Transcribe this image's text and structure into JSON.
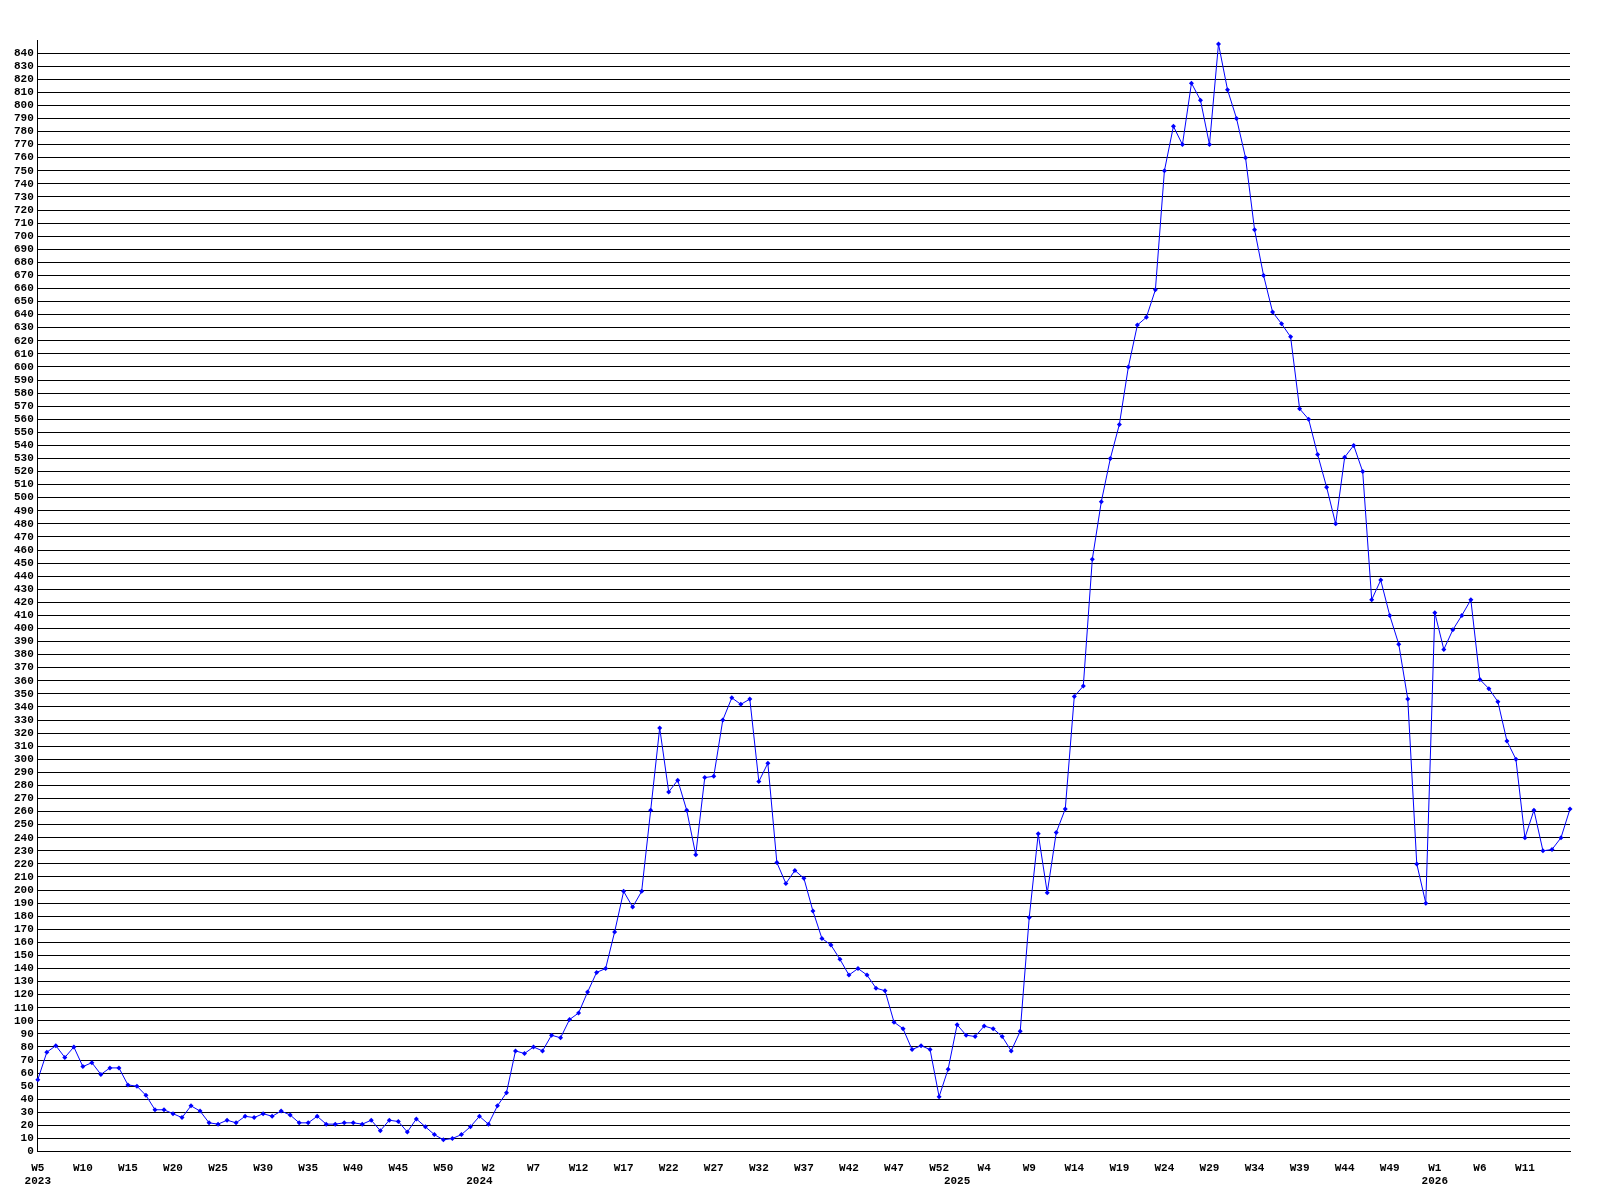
{
  "chart_data": {
    "type": "line",
    "categories": [
      "W5\n2023",
      null,
      null,
      null,
      null,
      "W10",
      null,
      null,
      null,
      null,
      "W15",
      null,
      null,
      null,
      null,
      "W20",
      null,
      null,
      null,
      null,
      "W25",
      null,
      null,
      null,
      null,
      "W30",
      null,
      null,
      null,
      null,
      "W35",
      null,
      null,
      null,
      null,
      "W40",
      null,
      null,
      null,
      null,
      "W45",
      null,
      null,
      null,
      null,
      "W50",
      null,
      null,
      null,
      "\n2024",
      "W2",
      null,
      null,
      null,
      null,
      "W7",
      null,
      null,
      null,
      null,
      "W12",
      null,
      null,
      null,
      null,
      "W17",
      null,
      null,
      null,
      null,
      "W22",
      null,
      null,
      null,
      null,
      "W27",
      null,
      null,
      null,
      null,
      "W32",
      null,
      null,
      null,
      null,
      "W37",
      null,
      null,
      null,
      null,
      "W42",
      null,
      null,
      null,
      null,
      "W47",
      null,
      null,
      null,
      null,
      "W52",
      null,
      "\n2025",
      null,
      null,
      "W4",
      null,
      null,
      null,
      null,
      "W9",
      null,
      null,
      null,
      null,
      "W14",
      null,
      null,
      null,
      null,
      "W19",
      null,
      null,
      null,
      null,
      "W24",
      null,
      null,
      null,
      null,
      "W29",
      null,
      null,
      null,
      null,
      "W34",
      null,
      null,
      null,
      null,
      "W39",
      null,
      null,
      null,
      null,
      "W44",
      null,
      null,
      null,
      null,
      "W49",
      null,
      null,
      null,
      null,
      "W1\n2026",
      null,
      null,
      null,
      null,
      "W6",
      null,
      null,
      null,
      null,
      "W11",
      null,
      null,
      null,
      null,
      null
    ],
    "series": [
      {
        "color": "#0000ff",
        "values": [
          55,
          76,
          81,
          72,
          80,
          65,
          68,
          59,
          64,
          64,
          51,
          50,
          43,
          32,
          32,
          29,
          26,
          35,
          31,
          22,
          21,
          24,
          22,
          27,
          26,
          29,
          27,
          31,
          28,
          22,
          22,
          27,
          21,
          21,
          22,
          22,
          21,
          24,
          16,
          24,
          23,
          15,
          25,
          19,
          13,
          9,
          10,
          13,
          19,
          27,
          21,
          35,
          45,
          77,
          75,
          80,
          77,
          89,
          87,
          101,
          106,
          122,
          137,
          140,
          168,
          199,
          187,
          199,
          261,
          324,
          275,
          284,
          261,
          227,
          286,
          287,
          330,
          347,
          342,
          346,
          283,
          297,
          221,
          205,
          215,
          209,
          184,
          163,
          158,
          147,
          135,
          140,
          135,
          125,
          123,
          99,
          94,
          78,
          81,
          78,
          42,
          63,
          97,
          89,
          88,
          96,
          94,
          88,
          77,
          92,
          179,
          243,
          198,
          244,
          262,
          348,
          356,
          453,
          497,
          530,
          556,
          600,
          632,
          638,
          659,
          750,
          784,
          770,
          817,
          804,
          770,
          847,
          812,
          790,
          760,
          705,
          670,
          642,
          633,
          623,
          568,
          560,
          533,
          508,
          480,
          531,
          540,
          520,
          422,
          437,
          410,
          388,
          346,
          220,
          190,
          412,
          384,
          399,
          410,
          422,
          361,
          354,
          344,
          314,
          300,
          240,
          261,
          230,
          231,
          240,
          262
        ]
      }
    ],
    "ylim": [
      0,
      850
    ],
    "yticks": [
      0,
      10,
      20,
      30,
      40,
      50,
      60,
      70,
      80,
      90,
      100,
      110,
      120,
      130,
      140,
      150,
      160,
      170,
      180,
      190,
      200,
      210,
      220,
      230,
      240,
      250,
      260,
      270,
      280,
      290,
      300,
      310,
      320,
      330,
      340,
      350,
      360,
      370,
      380,
      390,
      400,
      410,
      420,
      430,
      440,
      450,
      460,
      470,
      480,
      490,
      500,
      510,
      520,
      530,
      540,
      550,
      560,
      570,
      580,
      590,
      600,
      610,
      620,
      630,
      640,
      650,
      660,
      670,
      680,
      690,
      700,
      710,
      720,
      730,
      740,
      750,
      760,
      770,
      780,
      790,
      800,
      810,
      820,
      830,
      840
    ],
    "grid": "y",
    "legend": false,
    "marker": "diamond",
    "line_style": "solid"
  }
}
